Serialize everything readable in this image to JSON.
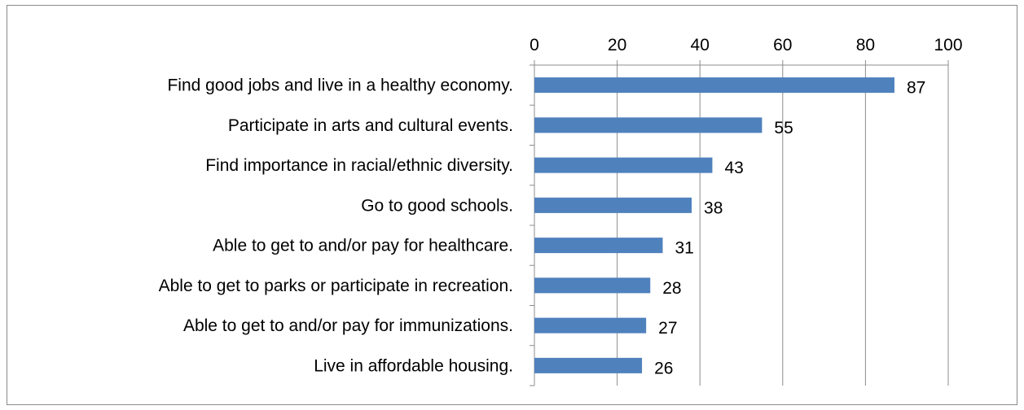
{
  "chart_data": {
    "type": "bar",
    "orientation": "horizontal",
    "title": "",
    "xlabel": "",
    "ylabel": "",
    "xlim": [
      0,
      100
    ],
    "x_ticks": [
      0,
      20,
      40,
      60,
      80,
      100
    ],
    "x_axis_position": "top",
    "grid": true,
    "legend": "none",
    "bar_color": "#4F81BD",
    "categories": [
      "Find good jobs and live in a healthy economy.",
      "Participate in arts and cultural events.",
      "Find importance in racial/ethnic diversity.",
      "Go to good schools.",
      "Able to get to and/or pay for healthcare.",
      "Able to get to parks or participate in recreation.",
      "Able to get to and/or pay for immunizations.",
      "Live in affordable housing."
    ],
    "values": [
      87,
      55,
      43,
      38,
      31,
      28,
      27,
      26
    ],
    "data_labels": [
      "87",
      "55",
      "43",
      "38",
      "31",
      "28",
      "27",
      "26"
    ]
  }
}
